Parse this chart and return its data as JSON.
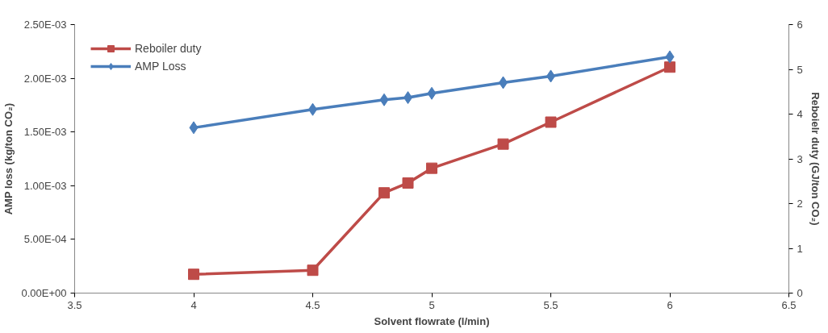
{
  "chart_data": {
    "type": "line",
    "xlabel": "Solvent flowrate (l/min)",
    "ylabel": "AMP loss (kg/ton CO₂)",
    "y2label": "Reboielr duty (GJ/ton CO₂)",
    "x": [
      4,
      4.5,
      4.8,
      4.9,
      5,
      5.3,
      5.5,
      6
    ],
    "series": [
      {
        "name": "Reboiler duty",
        "color": "#be4b48",
        "axis": "y2",
        "marker": "square",
        "values": [
          0.42,
          0.51,
          2.24,
          2.46,
          2.79,
          3.33,
          3.82,
          5.05
        ]
      },
      {
        "name": "AMP Loss",
        "color": "#4a7ebb",
        "axis": "y",
        "marker": "diamond",
        "values": [
          0.00154,
          0.00171,
          0.0018,
          0.00182,
          0.00186,
          0.00196,
          0.00202,
          0.0022
        ]
      }
    ],
    "xlim": [
      3.5,
      6.5
    ],
    "xticks": [
      3.5,
      4,
      4.5,
      5,
      5.5,
      6,
      6.5
    ],
    "ylim": [
      0,
      0.0025
    ],
    "yticks": [
      {
        "value": 0,
        "label": "0.00E+00"
      },
      {
        "value": 0.0005,
        "label": "5.00E-04"
      },
      {
        "value": 0.001,
        "label": "1.00E-03"
      },
      {
        "value": 0.0015,
        "label": "1.50E-03"
      },
      {
        "value": 0.002,
        "label": "2.00E-03"
      },
      {
        "value": 0.0025,
        "label": "2.50E-03"
      }
    ],
    "y2lim": [
      0,
      6
    ],
    "y2ticks": [
      0,
      1,
      2,
      3,
      4,
      5,
      6
    ],
    "legend": "top left",
    "grid": false
  }
}
